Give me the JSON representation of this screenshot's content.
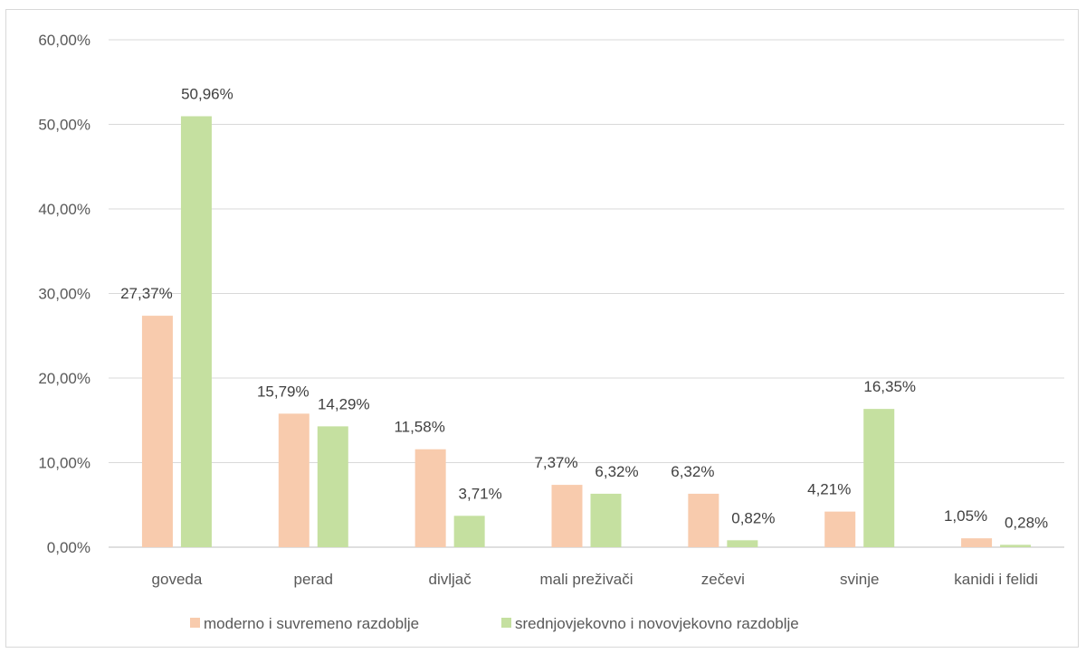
{
  "chart_data": {
    "type": "bar",
    "categories": [
      "goveda",
      "perad",
      "divljač",
      "mali preživači",
      "zečevi",
      "svinje",
      "kanidi i felidi"
    ],
    "series": [
      {
        "name": "moderno i suvremeno razdoblje",
        "values": [
          27.37,
          15.79,
          11.58,
          7.37,
          6.32,
          4.21,
          1.05
        ],
        "labels": [
          "27,37%",
          "15,79%",
          "11,58%",
          "7,37%",
          "6,32%",
          "4,21%",
          "1,05%"
        ],
        "color": "#f8cbad"
      },
      {
        "name": "srednjovjekovno i novovjekovno razdoblje",
        "values": [
          50.96,
          14.29,
          3.71,
          6.32,
          0.82,
          16.35,
          0.28
        ],
        "labels": [
          "50,96%",
          "14,29%",
          "3,71%",
          "6,32%",
          "0,82%",
          "16,35%",
          "0,28%"
        ],
        "color": "#c5e0a0"
      }
    ],
    "ylim": [
      0,
      60
    ],
    "yticks": [
      0,
      10,
      20,
      30,
      40,
      50,
      60
    ],
    "ytick_labels": [
      "0,00%",
      "10,00%",
      "20,00%",
      "30,00%",
      "40,00%",
      "50,00%",
      "60,00%"
    ],
    "grid": true,
    "legend": "bottom",
    "title": "",
    "xlabel": "",
    "ylabel": ""
  }
}
